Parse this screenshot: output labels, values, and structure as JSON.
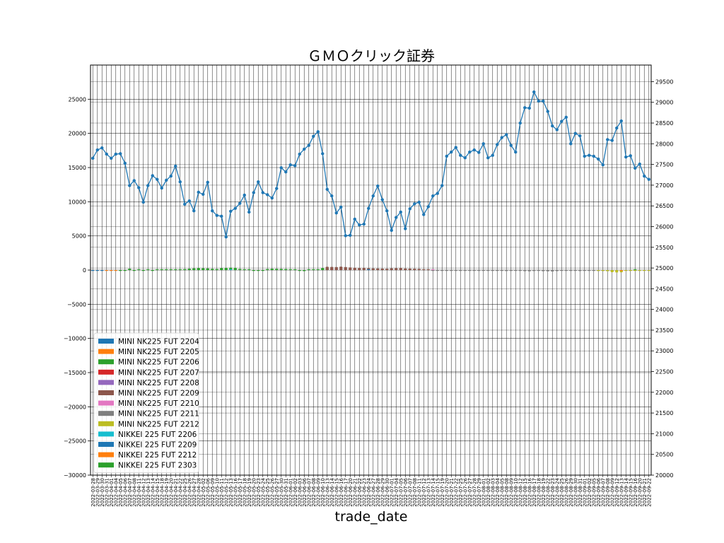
{
  "chart_data": {
    "type": "bar+line",
    "title": "ＧＭＯクリック証券",
    "xlabel": "trade_date",
    "ylabel": "",
    "ylim_left": [
      -30000,
      30000
    ],
    "yticks_left": [
      -30000,
      -25000,
      -20000,
      -15000,
      -10000,
      -5000,
      0,
      5000,
      10000,
      15000,
      20000,
      25000
    ],
    "ylim_right": [
      20000,
      29900
    ],
    "yticks_right": [
      20000,
      20500,
      21000,
      21500,
      22000,
      22500,
      23000,
      23500,
      24000,
      24500,
      25000,
      25500,
      26000,
      26500,
      27000,
      27500,
      28000,
      28500,
      29000,
      29500
    ],
    "grid": true,
    "legend_position": "lower-left",
    "dates": [
      "2022-03-28",
      "2022-03-29",
      "2022-03-30",
      "2022-03-31",
      "2022-04-01",
      "2022-04-04",
      "2022-04-05",
      "2022-04-06",
      "2022-04-07",
      "2022-04-08",
      "2022-04-11",
      "2022-04-12",
      "2022-04-13",
      "2022-04-14",
      "2022-04-15",
      "2022-04-18",
      "2022-04-19",
      "2022-04-20",
      "2022-04-21",
      "2022-04-22",
      "2022-04-25",
      "2022-04-26",
      "2022-04-27",
      "2022-04-28",
      "2022-05-02",
      "2022-05-06",
      "2022-05-09",
      "2022-05-10",
      "2022-05-11",
      "2022-05-12",
      "2022-05-13",
      "2022-05-16",
      "2022-05-17",
      "2022-05-18",
      "2022-05-19",
      "2022-05-20",
      "2022-05-23",
      "2022-05-24",
      "2022-05-25",
      "2022-05-26",
      "2022-05-27",
      "2022-05-30",
      "2022-05-31",
      "2022-06-01",
      "2022-06-02",
      "2022-06-03",
      "2022-06-06",
      "2022-06-07",
      "2022-06-08",
      "2022-06-09",
      "2022-06-10",
      "2022-06-13",
      "2022-06-14",
      "2022-06-15",
      "2022-06-16",
      "2022-06-17",
      "2022-06-20",
      "2022-06-21",
      "2022-06-22",
      "2022-06-23",
      "2022-06-24",
      "2022-06-27",
      "2022-06-28",
      "2022-06-29",
      "2022-06-30",
      "2022-07-01",
      "2022-07-04",
      "2022-07-05",
      "2022-07-06",
      "2022-07-07",
      "2022-07-08",
      "2022-07-11",
      "2022-07-12",
      "2022-07-13",
      "2022-07-14",
      "2022-07-15",
      "2022-07-19",
      "2022-07-20",
      "2022-07-21",
      "2022-07-22",
      "2022-07-25",
      "2022-07-26",
      "2022-07-27",
      "2022-07-28",
      "2022-07-29",
      "2022-08-01",
      "2022-08-02",
      "2022-08-03",
      "2022-08-04",
      "2022-08-05",
      "2022-08-08",
      "2022-08-09",
      "2022-08-10",
      "2022-08-12",
      "2022-08-15",
      "2022-08-16",
      "2022-08-17",
      "2022-08-18",
      "2022-08-19",
      "2022-08-22",
      "2022-08-23",
      "2022-08-24",
      "2022-08-25",
      "2022-08-26",
      "2022-08-29",
      "2022-08-30",
      "2022-08-31",
      "2022-09-01",
      "2022-09-02",
      "2022-09-05",
      "2022-09-06",
      "2022-09-07",
      "2022-09-08",
      "2022-09-09",
      "2022-09-12",
      "2022-09-13",
      "2022-09-14",
      "2022-09-15",
      "2022-09-16",
      "2022-09-20",
      "2022-09-21",
      "2022-09-22"
    ],
    "line_series": {
      "name": "",
      "color": "#1f77b4",
      "axis": "right",
      "values": [
        27650,
        27850,
        27900,
        27750,
        27650,
        27750,
        27760,
        27530,
        26990,
        27110,
        26940,
        26590,
        26990,
        27230,
        27140,
        26930,
        27120,
        27220,
        27460,
        27080,
        26540,
        26620,
        26380,
        26830,
        26780,
        27070,
        26380,
        26270,
        26250,
        25750,
        26370,
        26440,
        26560,
        26760,
        26350,
        26820,
        27080,
        26820,
        26770,
        26690,
        26920,
        27420,
        27320,
        27490,
        27470,
        27750,
        27870,
        27960,
        28180,
        28290,
        27760,
        26900,
        26740,
        26330,
        26470,
        25780,
        25790,
        26180,
        26040,
        26060,
        26440,
        26740,
        26980,
        26650,
        26380,
        25910,
        26220,
        26350,
        25950,
        26430,
        26550,
        26590,
        26290,
        26480,
        26740,
        26800,
        26990,
        27700,
        27800,
        27910,
        27720,
        27660,
        27800,
        27850,
        27790,
        28000,
        27660,
        27720,
        27980,
        28150,
        28220,
        27960,
        27800,
        28500,
        28870,
        28860,
        29250,
        29030,
        29030,
        28780,
        28430,
        28340,
        28540,
        28640,
        28000,
        28250,
        28190,
        27700,
        27720,
        27700,
        27630,
        27490,
        28100,
        28080,
        28380,
        28550,
        27680,
        27710,
        27410,
        27510,
        27220,
        27140
      ]
    },
    "bar_series": [
      {
        "name": "MINI NK225 FUT 2204",
        "color": "#1f77b4",
        "segment": [
          0,
          2
        ],
        "values": [
          -100,
          -80,
          -60
        ]
      },
      {
        "name": "MINI NK225 FUT 2205",
        "color": "#ff7f0e",
        "segment": [
          3,
          5
        ],
        "values": [
          -60,
          -40,
          -40
        ]
      },
      {
        "name": "MINI NK225 FUT 2206",
        "color": "#2ca02c",
        "segment": [
          6,
          51
        ],
        "values": [
          -40,
          -20,
          200,
          -20,
          120,
          -60,
          40,
          -20,
          40,
          80,
          60,
          40,
          80,
          120,
          140,
          200,
          250,
          300,
          260,
          240,
          180,
          150,
          300,
          320,
          350,
          320,
          160,
          120,
          80,
          -60,
          -80,
          -40,
          150,
          200,
          180,
          170,
          150,
          120,
          60,
          -80,
          -150,
          20,
          60,
          80,
          300,
          260
        ]
      },
      {
        "name": "MINI NK225 FUT 2207",
        "color": "#d62728",
        "segment": [
          52,
          52
        ],
        "values": [
          40
        ]
      },
      {
        "name": "MINI NK225 FUT 2208",
        "color": "#9467bd",
        "segment": [
          53,
          53
        ],
        "values": [
          40
        ]
      },
      {
        "name": "MINI NK225 FUT 2209",
        "color": "#8c564b",
        "segment": [
          51,
          73
        ],
        "values": [
          480,
          460,
          440,
          500,
          440,
          380,
          330,
          300,
          320,
          260,
          240,
          230,
          210,
          190,
          250,
          280,
          300,
          220,
          210,
          190,
          170,
          120,
          80
        ]
      },
      {
        "name": "MINI NK225 FUT 2210",
        "color": "#e377c2",
        "segment": [
          74,
          74
        ],
        "values": [
          30
        ]
      },
      {
        "name": "MINI NK225 FUT 2211",
        "color": "#7f7f7f",
        "segment": [
          74,
          113
        ],
        "values": [
          -40,
          -60,
          -80,
          -100,
          -60,
          -40,
          -20,
          -80,
          -60,
          -40,
          -100,
          -120,
          -80,
          -40,
          -80,
          -100,
          -140,
          -120,
          -80,
          -100,
          -160,
          -180,
          -140,
          -120,
          -160,
          -180,
          -200,
          -150,
          -120,
          -40,
          -20,
          -60,
          -140,
          -120,
          -40,
          -20,
          -40,
          -20,
          -40,
          -60
        ]
      },
      {
        "name": "MINI NK225 FUT 2212",
        "color": "#bcbd22",
        "segment": [
          110,
          121
        ],
        "values": [
          -20,
          -60,
          -160,
          -300,
          -340,
          -320,
          -120,
          -80,
          -60,
          -40,
          -30,
          -20
        ]
      },
      {
        "name": "NIKKEI 225 FUT 2206",
        "color": "#17becf",
        "segment": [
          30,
          30
        ],
        "values": [
          20
        ]
      },
      {
        "name": "NIKKEI 225 FUT 2209",
        "color": "#1f77b4",
        "segment": [
          60,
          60
        ],
        "values": [
          20
        ]
      },
      {
        "name": "NIKKEI 225 FUT 2212",
        "color": "#ff7f0e",
        "segment": [
          115,
          115
        ],
        "values": [
          -40
        ]
      },
      {
        "name": "NIKKEI 225 FUT 2303",
        "color": "#2ca02c",
        "segment": [
          118,
          118
        ],
        "values": [
          20
        ]
      }
    ]
  }
}
